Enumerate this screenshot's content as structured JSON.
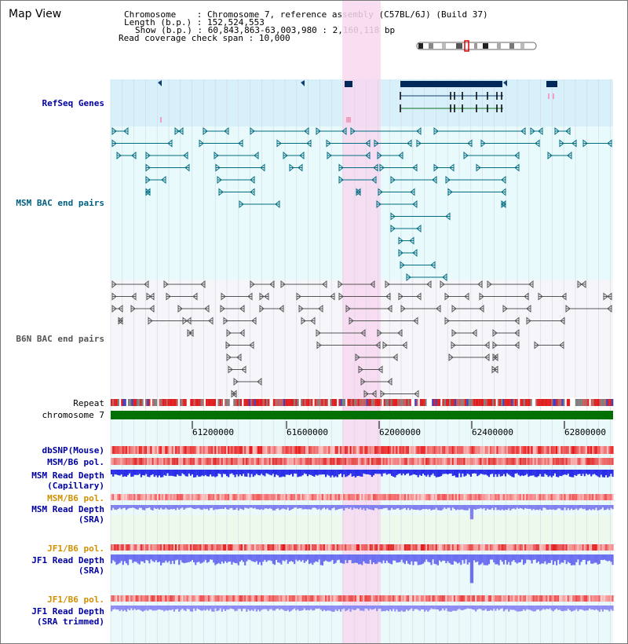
{
  "title": "Map View",
  "info": {
    "chromosome_label": "Chromosome",
    "chromosome_value": "Chromosome 7, reference assembly (C57BL/6J) (Build 37)",
    "length_label": "Length (b.p.)",
    "length_value": "152,524,553",
    "show_label": "Show (b.p.)",
    "show_value": "60,843,863-63,003,980 : 2,160,118 bp",
    "span_label": "Read coverage check span",
    "span_value": "10,000"
  },
  "tracks": {
    "refseq": "RefSeq Genes",
    "msm_bac": "MSM BAC end pairs",
    "b6n_bac": "B6N BAC end pairs",
    "repeat": "Repeat",
    "chromosome": "chromosome 7",
    "dbsnp": "dbSNP(Mouse)",
    "msm_b6_pol": "MSM/B6 pol.",
    "msm_depth_cap_1": "MSM Read Depth",
    "msm_depth_cap_2": "(Capillary)",
    "msm_b6_pol_sra": "MSM/B6 pol.",
    "msm_depth_sra_1": "MSM Read Depth",
    "msm_depth_sra_2": "(SRA)",
    "jf1_b6_pol": "JF1/B6 pol.",
    "jf1_depth_1": "JF1 Read Depth",
    "jf1_depth_2": "(SRA)",
    "jf1_b6_pol_tr": "JF1/B6 pol.",
    "jf1_depth_tr_1": "JF1 Read Depth",
    "jf1_depth_tr_2": "(SRA trimmed)"
  },
  "axis_ticks": [
    "61200000",
    "61600000",
    "62000000",
    "62400000",
    "62800000"
  ],
  "colors": {
    "highlight": "#f8d8f0",
    "refseq_bg": "#d8f0fa",
    "msm_bg": "#e8fafc",
    "gene": "#00295a",
    "msm_feature": "#006c80",
    "b6n_feature": "#555555",
    "chromosome_bar": "#007000",
    "msm_label": "#006080",
    "navy_label": "#0000a0",
    "orange_label": "#d09000"
  }
}
